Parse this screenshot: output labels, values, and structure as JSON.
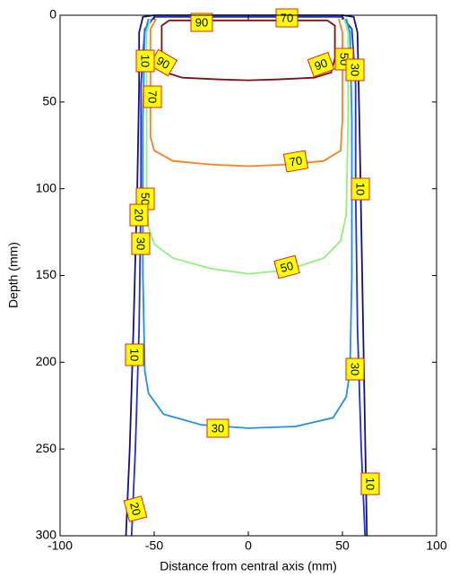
{
  "chart_data": {
    "type": "contour",
    "xlabel": "Distance from central axis (mm)",
    "ylabel": "Depth (mm)",
    "xlim": [
      -100,
      100
    ],
    "xticks": [
      -100,
      -50,
      0,
      50,
      100
    ],
    "ylim": [
      0,
      300
    ],
    "yticks": [
      0,
      50,
      100,
      150,
      200,
      250,
      300
    ],
    "y_reversed": true,
    "series": [
      {
        "name": "10",
        "color": "#10108a",
        "x": [
          -65,
          -63,
          -61,
          -59,
          -58,
          -58,
          -56,
          -50,
          50,
          56,
          58,
          59,
          61,
          63
        ],
        "y": [
          300,
          250,
          180,
          100,
          40,
          10,
          1,
          0,
          0,
          1,
          10,
          60,
          180,
          300
        ]
      },
      {
        "name": "20",
        "color": "#2030d8",
        "x": [
          -62,
          -60,
          -58,
          -57,
          -57,
          -55,
          -50,
          50,
          55,
          57,
          57,
          58,
          60,
          62
        ],
        "y": [
          300,
          250,
          180,
          100,
          40,
          8,
          1,
          1,
          8,
          40,
          100,
          180,
          250,
          300
        ]
      },
      {
        "name": "30",
        "color": "#1e90e8",
        "x": [
          -53,
          -55,
          -56,
          -56,
          -55,
          -53,
          -45,
          -25,
          0,
          25,
          45,
          52,
          54,
          55,
          55,
          54,
          52
        ],
        "y": [
          2,
          10,
          60,
          150,
          205,
          218,
          230,
          236,
          238,
          237,
          232,
          220,
          205,
          150,
          60,
          10,
          2
        ]
      },
      {
        "name": "50",
        "color": "#90f080",
        "x": [
          -52,
          -54,
          -54,
          -54,
          -53,
          -50,
          -40,
          -20,
          0,
          20,
          40,
          49,
          52,
          53,
          53,
          51
        ],
        "y": [
          2,
          10,
          60,
          110,
          122,
          132,
          140,
          146,
          149,
          147,
          140,
          130,
          115,
          60,
          10,
          2
        ]
      },
      {
        "name": "70",
        "color": "#ff7f1f",
        "x": [
          -49,
          -52,
          -52,
          -52,
          -50,
          -40,
          -20,
          0,
          20,
          40,
          49,
          50,
          50,
          48
        ],
        "y": [
          2,
          8,
          40,
          70,
          78,
          84,
          86,
          87,
          86,
          84,
          78,
          60,
          10,
          2
        ]
      },
      {
        "name": "90",
        "color": "#7f1010",
        "x": [
          -42,
          -46,
          -46,
          -44,
          -35,
          -15,
          0,
          15,
          35,
          44,
          46,
          46,
          42,
          -42
        ],
        "y": [
          3,
          6,
          25,
          33,
          36,
          37,
          37.5,
          37,
          36,
          33,
          25,
          6,
          3,
          3
        ]
      }
    ]
  }
}
